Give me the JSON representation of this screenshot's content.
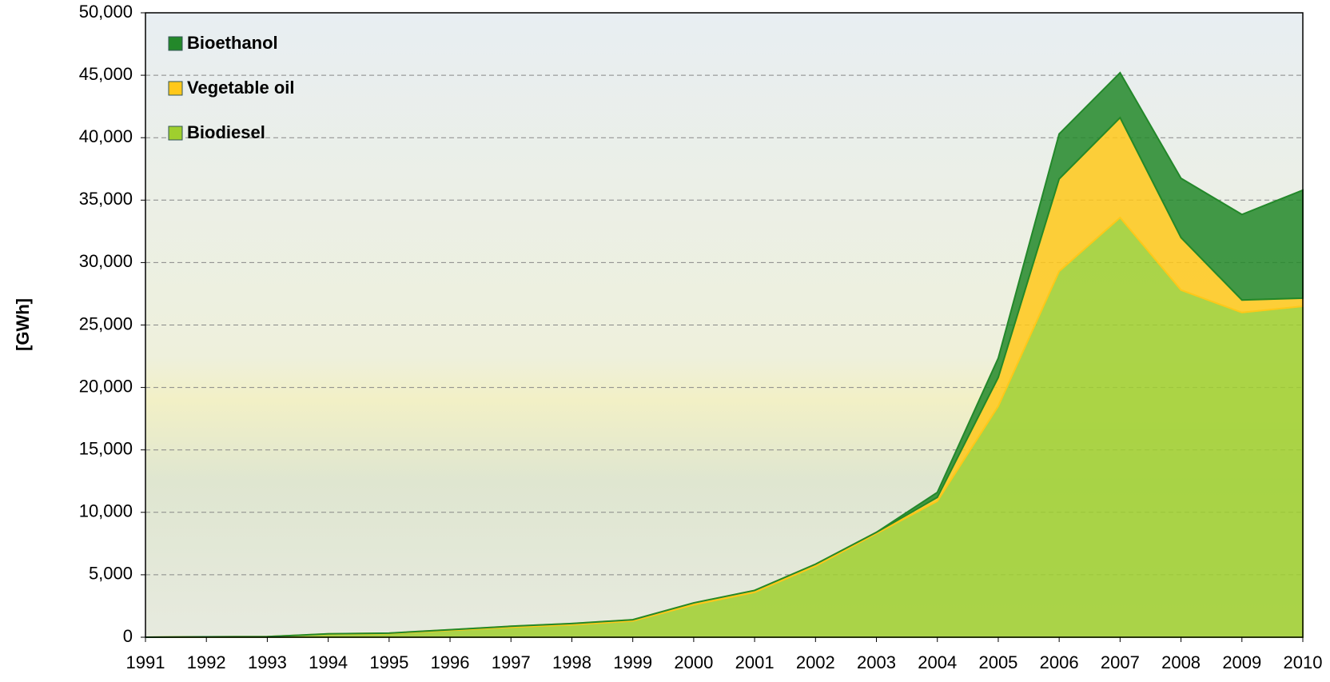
{
  "chart_data": {
    "type": "stacked-area",
    "y_label": "[GWh]",
    "categories": [
      "1991",
      "1992",
      "1993",
      "1994",
      "1995",
      "1996",
      "1997",
      "1998",
      "1999",
      "2000",
      "2001",
      "2002",
      "2003",
      "2004",
      "2005",
      "2006",
      "2007",
      "2008",
      "2009",
      "2010"
    ],
    "series": [
      {
        "name": "Biodiesel",
        "color": "#9fcf2e",
        "values": [
          0,
          30,
          50,
          250,
          300,
          550,
          800,
          1000,
          1300,
          2600,
          3600,
          5700,
          8300,
          10900,
          18500,
          29300,
          33600,
          27800,
          26000,
          26500
        ]
      },
      {
        "name": "Vegetable oil",
        "color": "#ffc81a",
        "values": [
          0,
          0,
          0,
          20,
          30,
          50,
          80,
          100,
          100,
          150,
          150,
          150,
          100,
          300,
          2300,
          7400,
          8000,
          4200,
          1000,
          650
        ]
      },
      {
        "name": "Bioethanol",
        "color": "#23882a",
        "values": [
          0,
          0,
          0,
          0,
          0,
          0,
          0,
          0,
          0,
          0,
          0,
          0,
          0,
          400,
          1550,
          3600,
          3600,
          4750,
          6850,
          8650
        ]
      }
    ],
    "ylim": [
      0,
      50000
    ],
    "yticks": [
      0,
      {
        "value": 5000,
        "label": "5,000"
      },
      {
        "value": 10000,
        "label": "10,000"
      },
      {
        "value": 15000,
        "label": "15,000"
      },
      {
        "value": 20000,
        "label": "20,000"
      },
      {
        "value": 25000,
        "label": "25,000"
      },
      {
        "value": 30000,
        "label": "30,000"
      },
      {
        "value": 35000,
        "label": "35,000"
      },
      {
        "value": 40000,
        "label": "40,000"
      },
      {
        "value": 45000,
        "label": "45,000"
      },
      {
        "value": 50000,
        "label": "50,000"
      }
    ],
    "grid": true,
    "legend": "top-left"
  }
}
